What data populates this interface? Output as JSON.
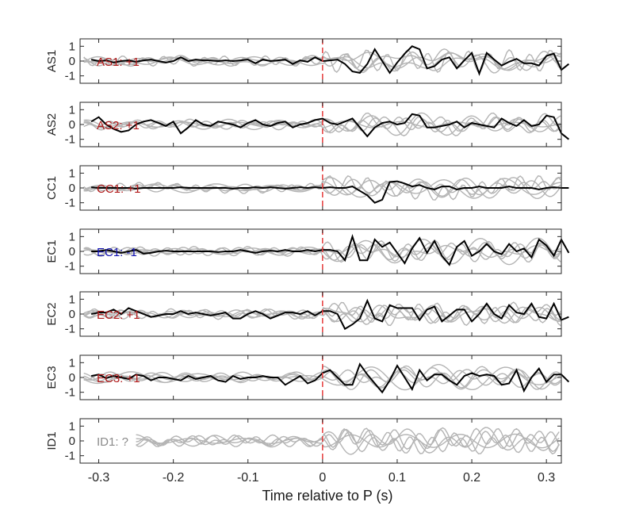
{
  "chart_data": {
    "type": "line",
    "xlabel": "Time relative to P (s)",
    "xlim": [
      -0.325,
      0.32
    ],
    "ylim": [
      -1.5,
      1.5
    ],
    "xticks": [
      -0.3,
      -0.2,
      -0.1,
      0,
      0.1,
      0.2,
      0.3
    ],
    "xtick_labels": [
      "-0.3",
      "-0.2",
      "-0.1",
      "0",
      "0.1",
      "0.2",
      "0.3"
    ],
    "yticks": [
      1,
      0,
      -1
    ],
    "ytick_labels": [
      "1",
      "0",
      "-1"
    ],
    "marker_time": 0,
    "colors": {
      "trace": "#000000",
      "background": "#b4b4b4",
      "marker": "#e53a3a",
      "positive": "#b01818",
      "negative": "#1010b0",
      "unknown": "#8a8a8a"
    },
    "dt": 0.01,
    "panels": [
      {
        "station": "AS1",
        "label": "AS1: +1",
        "polarity": "positive",
        "x0": -0.31,
        "values": [
          0.1,
          0.0,
          0.05,
          -0.1,
          0.0,
          0.05,
          -0.05,
          0.05,
          0.1,
          0.0,
          -0.1,
          0.0,
          0.25,
          0.0,
          0.1,
          0.05,
          0.05,
          0.0,
          0.05,
          0.0,
          0.05,
          0.1,
          -0.15,
          0.1,
          0.0,
          0.05,
          0.1,
          -0.2,
          0.05,
          -0.05,
          0.25,
          0.0,
          0.05,
          0.1,
          -0.2,
          -0.7,
          -0.8,
          -0.2,
          0.8,
          0.0,
          -0.8,
          -0.1,
          0.5,
          1.0,
          0.8,
          -0.5,
          -0.35,
          0.1,
          0.25,
          -0.5,
          0.05,
          0.55,
          -0.85,
          0.55,
          0.1,
          -0.3,
          -0.05,
          0.15,
          -0.15,
          -0.15,
          -0.3,
          0.35,
          0.5,
          -0.6,
          -0.2
        ]
      },
      {
        "station": "AS2",
        "label": "AS2: +1",
        "polarity": "positive",
        "x0": -0.31,
        "values": [
          0.2,
          0.5,
          0.0,
          -0.3,
          -0.5,
          -0.4,
          0.0,
          0.2,
          0.3,
          0.1,
          -0.1,
          0.2,
          -0.6,
          -0.2,
          0.3,
          0.0,
          -0.1,
          0.2,
          0.1,
          0.0,
          -0.2,
          0.1,
          0.3,
          0.0,
          -0.1,
          0.1,
          0.2,
          -0.2,
          0.0,
          0.1,
          0.3,
          0.4,
          0.1,
          0.0,
          0.2,
          0.4,
          -0.2,
          -0.8,
          -0.2,
          0.1,
          0.2,
          0.0,
          0.1,
          0.7,
          0.6,
          -0.2,
          -0.2,
          -0.1,
          0.0,
          0.2,
          -0.2,
          0.1,
          0.0,
          -0.1,
          -0.2,
          0.4,
          0.1,
          -0.1,
          0.3,
          -0.1,
          0.0,
          0.6,
          0.5,
          -0.6,
          -1.0
        ]
      },
      {
        "station": "CC1",
        "label": "CC1: +1",
        "polarity": "positive",
        "x0": -0.31,
        "values": [
          0.05,
          0.0,
          0.0,
          0.0,
          0.0,
          0.0,
          -0.05,
          0.0,
          0.0,
          0.0,
          0.0,
          0.0,
          0.05,
          0.0,
          0.0,
          0.0,
          0.0,
          0.0,
          0.0,
          -0.05,
          0.0,
          0.0,
          0.05,
          0.0,
          0.05,
          0.0,
          -0.05,
          0.0,
          0.05,
          0.0,
          0.05,
          0.0,
          0.05,
          0.0,
          0.0,
          0.1,
          -0.2,
          -0.5,
          -1.0,
          -0.8,
          0.4,
          0.45,
          0.3,
          0.1,
          0.2,
          0.0,
          -0.1,
          0.1,
          0.1,
          -0.1,
          0.0,
          0.0,
          0.1,
          0.0,
          0.0,
          0.0,
          0.1,
          0.0,
          0.0,
          0.0,
          -0.1,
          0.0,
          0.05,
          0.0,
          0.0
        ]
      },
      {
        "station": "EC1",
        "label": "EC1: -1",
        "polarity": "negative",
        "x0": -0.31,
        "values": [
          0.0,
          0.0,
          0.1,
          0.0,
          -0.1,
          0.0,
          0.1,
          -0.15,
          -0.1,
          0.0,
          0.05,
          0.0,
          0.0,
          0.0,
          0.0,
          0.0,
          0.0,
          -0.05,
          0.0,
          0.0,
          0.1,
          0.0,
          -0.1,
          0.0,
          0.05,
          0.0,
          0.1,
          0.0,
          0.0,
          0.1,
          0.0,
          0.1,
          0.1,
          0.0,
          -0.6,
          1.0,
          -0.6,
          -0.6,
          0.8,
          0.3,
          0.6,
          -0.1,
          -0.8,
          0.2,
          0.9,
          -0.1,
          0.7,
          -0.3,
          -0.9,
          0.3,
          0.7,
          -0.3,
          0.0,
          0.5,
          0.0,
          -0.2,
          0.5,
          0.0,
          0.2,
          -0.4,
          0.8,
          0.4,
          -0.3,
          0.8,
          -0.1
        ]
      },
      {
        "station": "EC2",
        "label": "EC2: +1",
        "polarity": "positive",
        "x0": -0.31,
        "values": [
          0.0,
          0.1,
          0.1,
          0.3,
          0.0,
          0.4,
          0.2,
          0.0,
          -0.2,
          -0.1,
          0.0,
          0.0,
          0.2,
          0.0,
          0.1,
          0.0,
          -0.1,
          0.0,
          0.1,
          -0.3,
          -0.3,
          0.0,
          0.2,
          0.0,
          -0.3,
          -0.1,
          0.1,
          0.1,
          0.0,
          0.2,
          -0.1,
          0.2,
          0.2,
          0.0,
          -1.0,
          -0.7,
          -0.3,
          0.9,
          -0.3,
          -0.5,
          0.6,
          0.4,
          0.4,
          0.4,
          -0.4,
          0.3,
          0.5,
          -0.5,
          -0.1,
          0.3,
          0.3,
          -0.5,
          0.0,
          0.7,
          0.0,
          -0.3,
          0.6,
          0.1,
          0.0,
          0.7,
          -0.2,
          -0.3,
          0.7,
          -0.4,
          -0.2
        ]
      },
      {
        "station": "EC3",
        "label": "EC3: +1",
        "polarity": "positive",
        "x0": -0.31,
        "values": [
          0.1,
          0.2,
          -0.05,
          0.1,
          0.0,
          -0.1,
          0.2,
          0.1,
          -0.2,
          0.0,
          0.0,
          -0.1,
          -0.2,
          0.1,
          -0.1,
          0.0,
          0.1,
          -0.2,
          -0.3,
          0.1,
          -0.1,
          0.0,
          0.0,
          0.1,
          0.0,
          0.0,
          -0.5,
          -0.2,
          0.1,
          -0.4,
          -0.2,
          0.3,
          0.5,
          0.0,
          -0.5,
          -0.5,
          0.9,
          0.2,
          -0.4,
          -1.0,
          -0.2,
          0.8,
          0.0,
          -0.8,
          0.5,
          -0.2,
          0.2,
          0.2,
          -0.2,
          -0.5,
          0.1,
          0.3,
          0.1,
          0.2,
          0.1,
          -0.5,
          -0.4,
          0.5,
          -0.9,
          0.0,
          0.6,
          -0.3,
          0.2,
          0.2,
          -0.3
        ]
      },
      {
        "station": "ID1",
        "label": "ID1: ?",
        "polarity": "unknown",
        "x0": null,
        "values": []
      }
    ]
  }
}
